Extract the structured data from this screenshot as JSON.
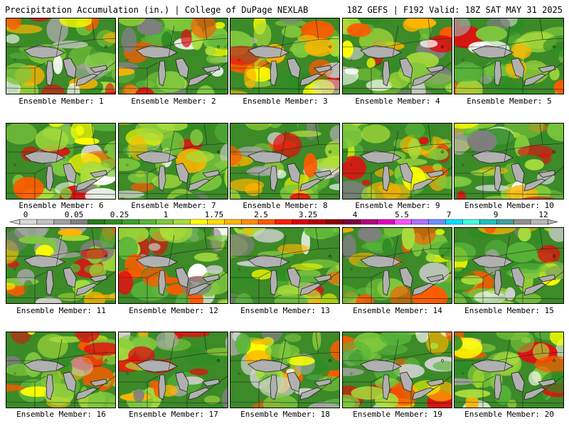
{
  "header": {
    "title": "Precipitation Accumulation (in.) | College of DuPage NEXLAB",
    "run_info": "18Z GEFS | F192 Valid: 18Z SAT MAY 31 2025"
  },
  "panels": [
    {
      "label": "Ensemble Member: 1"
    },
    {
      "label": "Ensemble Member: 2"
    },
    {
      "label": "Ensemble Member: 3"
    },
    {
      "label": "Ensemble Member: 4"
    },
    {
      "label": "Ensemble Member: 5"
    },
    {
      "label": "Ensemble Member: 6"
    },
    {
      "label": "Ensemble Member: 7"
    },
    {
      "label": "Ensemble Member: 8"
    },
    {
      "label": "Ensemble Member: 9"
    },
    {
      "label": "Ensemble Member: 10"
    },
    {
      "label": "Ensemble Member: 11"
    },
    {
      "label": "Ensemble Member: 12"
    },
    {
      "label": "Ensemble Member: 13"
    },
    {
      "label": "Ensemble Member: 14"
    },
    {
      "label": "Ensemble Member: 15"
    },
    {
      "label": "Ensemble Member: 16"
    },
    {
      "label": "Ensemble Member: 17"
    },
    {
      "label": "Ensemble Member: 18"
    },
    {
      "label": "Ensemble Member: 19"
    },
    {
      "label": "Ensemble Member: 20"
    }
  ],
  "colorbar": {
    "ticks": [
      "0",
      "0.05",
      "0.25",
      "1",
      "1.75",
      "2.5",
      "3.25",
      "4",
      "5.5",
      "7",
      "9",
      "12"
    ],
    "colors": [
      "#d9d9d9",
      "#c2c2c2",
      "#a0a0a0",
      "#7f7f7f",
      "#267a1e",
      "#2f8c24",
      "#3aa02c",
      "#58b43a",
      "#7fc83e",
      "#a8dc3c",
      "#ffff00",
      "#ffdc00",
      "#ffb400",
      "#ff8c00",
      "#ff5a00",
      "#ff1e00",
      "#dc0000",
      "#b40000",
      "#8c0000",
      "#7a003c",
      "#b0007a",
      "#e000c0",
      "#ff50ff",
      "#b070ff",
      "#6f8fff",
      "#00e0ff",
      "#40ffe0",
      "#20c0c0",
      "#40a0a0",
      "#909090",
      "#b8b8b8"
    ]
  }
}
